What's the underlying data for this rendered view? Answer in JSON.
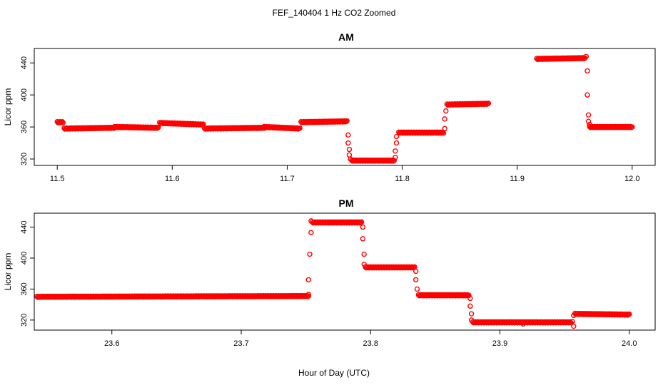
{
  "figure_title": "FEF_140404  1 Hz CO2 Zoomed",
  "xlabel": "Hour of Day (UTC)",
  "chart_data": [
    {
      "type": "scatter",
      "title": "AM",
      "ylabel": "Licor ppm",
      "xlim": [
        11.48,
        12.02
      ],
      "ylim": [
        312,
        458
      ],
      "x_ticks": [
        11.5,
        11.6,
        11.7,
        11.8,
        11.9,
        12.0
      ],
      "x_tick_labels": [
        "11.5",
        "11.6",
        "11.7",
        "11.8",
        "11.9",
        "12.0"
      ],
      "y_ticks": [
        320,
        360,
        400,
        440
      ],
      "y_tick_labels": [
        "320",
        "360",
        "400",
        "440"
      ],
      "marker_color": "#ff0000",
      "segments": [
        {
          "x0": 11.5,
          "x1": 11.505,
          "y0": 366,
          "y1": 366
        },
        {
          "x0": 11.506,
          "x1": 11.55,
          "y0": 358,
          "y1": 359
        },
        {
          "x0": 11.55,
          "x1": 11.588,
          "y0": 360,
          "y1": 359
        },
        {
          "x0": 11.589,
          "x1": 11.627,
          "y0": 365,
          "y1": 363
        },
        {
          "x0": 11.628,
          "x1": 11.68,
          "y0": 358,
          "y1": 359
        },
        {
          "x0": 11.68,
          "x1": 11.711,
          "y0": 360,
          "y1": 358
        },
        {
          "x0": 11.712,
          "x1": 11.752,
          "y0": 366,
          "y1": 367
        },
        {
          "x0": 11.756,
          "x1": 11.793,
          "y0": 318,
          "y1": 318
        },
        {
          "x0": 11.797,
          "x1": 11.836,
          "y0": 353,
          "y1": 353
        },
        {
          "x0": 11.839,
          "x1": 11.875,
          "y0": 388,
          "y1": 389
        },
        {
          "x0": 11.917,
          "x1": 11.959,
          "y0": 445,
          "y1": 446
        },
        {
          "x0": 11.963,
          "x1": 12.0,
          "y0": 360,
          "y1": 360
        }
      ],
      "transition_points": [
        {
          "x": 11.753,
          "y": 350
        },
        {
          "x": 11.753,
          "y": 340
        },
        {
          "x": 11.754,
          "y": 332
        },
        {
          "x": 11.754,
          "y": 325
        },
        {
          "x": 11.755,
          "y": 320
        },
        {
          "x": 11.794,
          "y": 322
        },
        {
          "x": 11.794,
          "y": 330
        },
        {
          "x": 11.795,
          "y": 340
        },
        {
          "x": 11.795,
          "y": 348
        },
        {
          "x": 11.837,
          "y": 358
        },
        {
          "x": 11.837,
          "y": 370
        },
        {
          "x": 11.838,
          "y": 380
        },
        {
          "x": 11.96,
          "y": 448
        },
        {
          "x": 11.961,
          "y": 430
        },
        {
          "x": 11.961,
          "y": 400
        },
        {
          "x": 11.962,
          "y": 375
        },
        {
          "x": 11.962,
          "y": 367
        },
        {
          "x": 11.963,
          "y": 363
        }
      ]
    },
    {
      "type": "scatter",
      "title": "PM",
      "ylabel": "Licor ppm",
      "xlim": [
        23.54,
        24.02
      ],
      "ylim": [
        307,
        458
      ],
      "x_ticks": [
        23.6,
        23.7,
        23.8,
        23.9,
        24.0
      ],
      "x_tick_labels": [
        "23.6",
        "23.7",
        "23.8",
        "23.9",
        "24.0"
      ],
      "y_ticks": [
        320,
        360,
        400,
        440
      ],
      "y_tick_labels": [
        "320",
        "360",
        "400",
        "440"
      ],
      "marker_color": "#ff0000",
      "segments": [
        {
          "x0": 23.542,
          "x1": 23.752,
          "y0": 350,
          "y1": 351
        },
        {
          "x0": 23.755,
          "x1": 23.793,
          "y0": 446,
          "y1": 446
        },
        {
          "x0": 23.796,
          "x1": 23.834,
          "y0": 388,
          "y1": 388
        },
        {
          "x0": 23.837,
          "x1": 23.876,
          "y0": 352,
          "y1": 352
        },
        {
          "x0": 23.879,
          "x1": 23.955,
          "y0": 317,
          "y1": 317
        },
        {
          "x0": 23.958,
          "x1": 24.0,
          "y0": 328,
          "y1": 327
        }
      ],
      "transition_points": [
        {
          "x": 23.752,
          "y": 353
        },
        {
          "x": 23.752,
          "y": 372
        },
        {
          "x": 23.753,
          "y": 405
        },
        {
          "x": 23.754,
          "y": 433
        },
        {
          "x": 23.754,
          "y": 448
        },
        {
          "x": 23.794,
          "y": 440
        },
        {
          "x": 23.794,
          "y": 425
        },
        {
          "x": 23.795,
          "y": 405
        },
        {
          "x": 23.795,
          "y": 392
        },
        {
          "x": 23.835,
          "y": 383
        },
        {
          "x": 23.835,
          "y": 372
        },
        {
          "x": 23.836,
          "y": 360
        },
        {
          "x": 23.877,
          "y": 348
        },
        {
          "x": 23.877,
          "y": 338
        },
        {
          "x": 23.878,
          "y": 328
        },
        {
          "x": 23.878,
          "y": 320
        },
        {
          "x": 23.918,
          "y": 315
        },
        {
          "x": 23.956,
          "y": 318
        },
        {
          "x": 23.957,
          "y": 312
        },
        {
          "x": 23.957,
          "y": 326
        }
      ]
    }
  ]
}
